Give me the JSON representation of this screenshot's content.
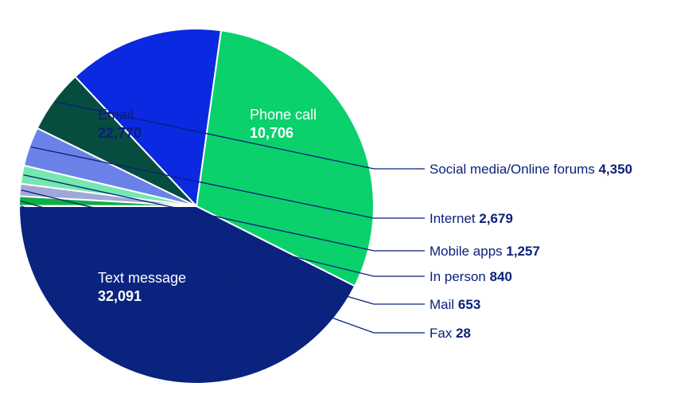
{
  "chart_data": {
    "type": "pie",
    "title": "",
    "slices": [
      {
        "label": "Text message",
        "value": 32091,
        "display": "32,091",
        "color": "#0a237f",
        "text_color": "#ffffff",
        "label_mode": "inside"
      },
      {
        "label": "Email",
        "value": 22770,
        "display": "22,770",
        "color": "#0bd16c",
        "text_color": "#0b1f7a",
        "label_mode": "inside"
      },
      {
        "label": "Phone call",
        "value": 10706,
        "display": "10,706",
        "color": "#0a29e0",
        "text_color": "#ffffff",
        "label_mode": "inside"
      },
      {
        "label": "Social media/Online forums",
        "value": 4350,
        "display": "4,350",
        "color": "#064d3f",
        "label_mode": "outside"
      },
      {
        "label": "Internet",
        "value": 2679,
        "display": "2,679",
        "color": "#6a82e8",
        "label_mode": "outside"
      },
      {
        "label": "Mobile apps",
        "value": 1257,
        "display": "1,257",
        "color": "#74e8ae",
        "label_mode": "outside"
      },
      {
        "label": "In person",
        "value": 840,
        "display": "840",
        "color": "#9fa8d8",
        "label_mode": "outside"
      },
      {
        "label": "Mail",
        "value": 653,
        "display": "653",
        "color": "#0cae45",
        "label_mode": "outside"
      },
      {
        "label": "Fax",
        "value": 28,
        "display": "28",
        "color": "#0a237f",
        "label_mode": "outside"
      }
    ],
    "leader_line_color": "#0b1f7a"
  }
}
